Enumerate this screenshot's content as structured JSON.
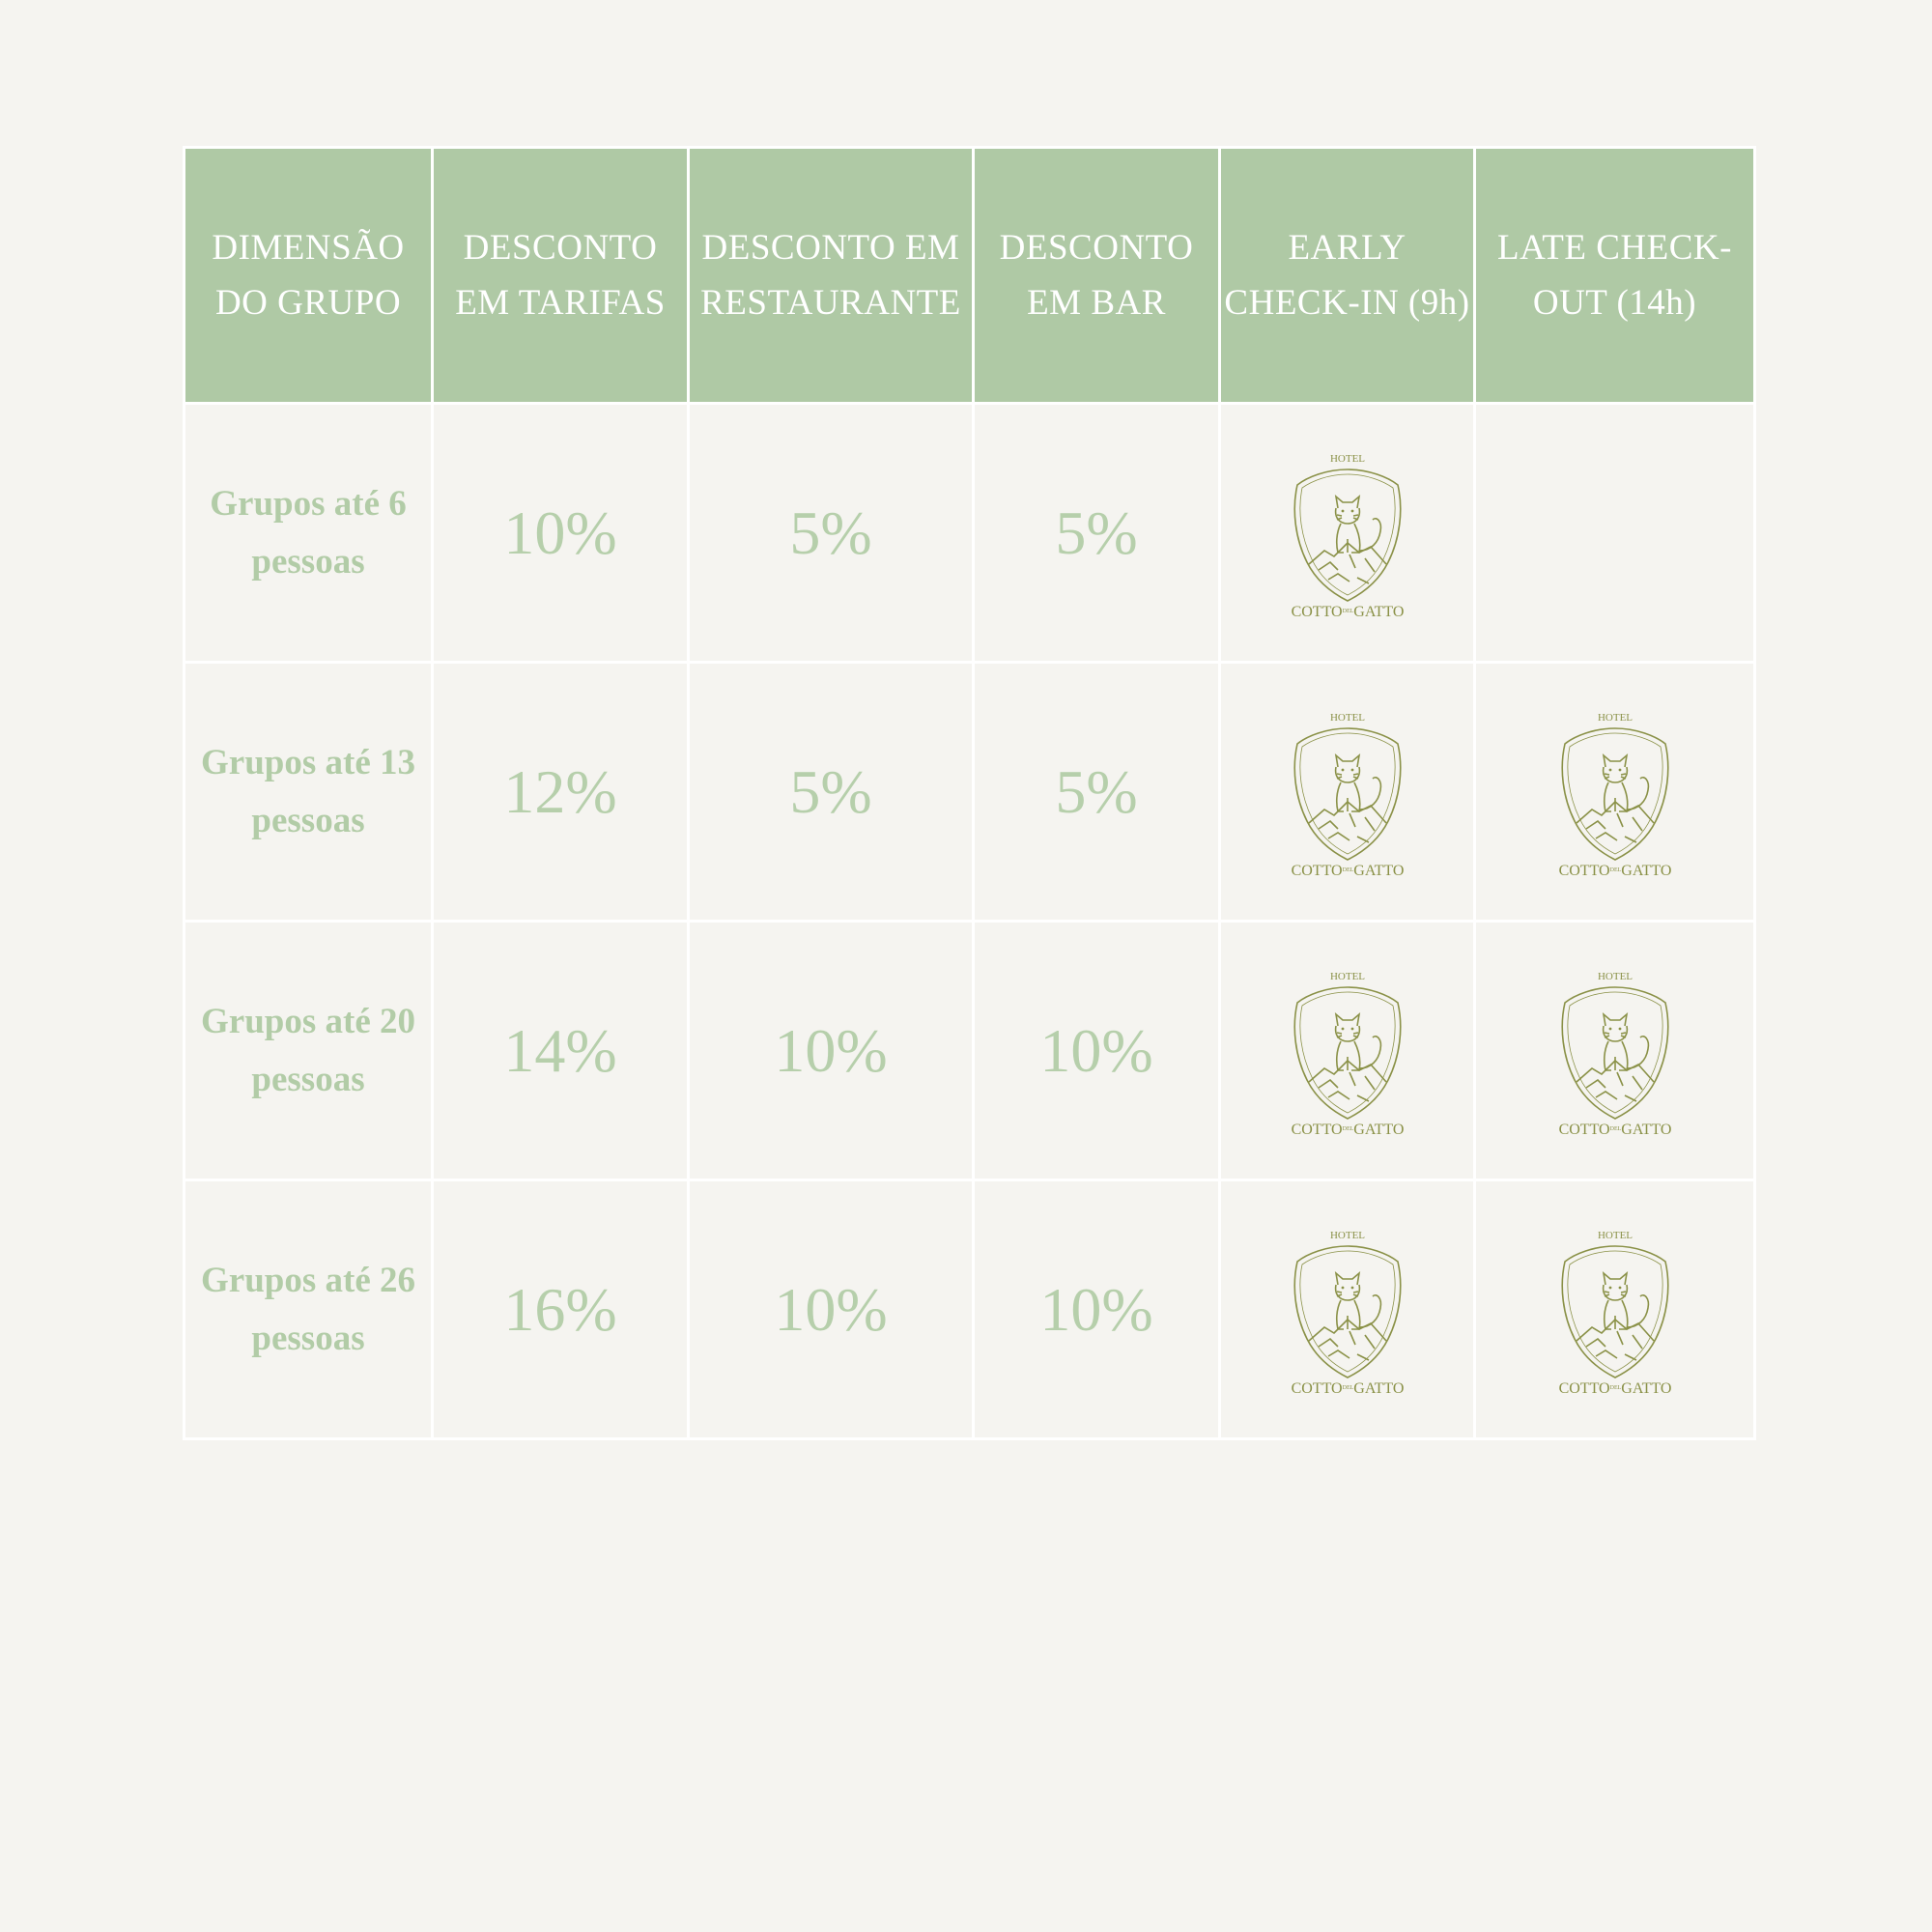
{
  "table": {
    "headers": [
      "DIMENSÃO DO GRUPO",
      "DESCONTO EM TARIFAS",
      "DESCONTO EM RESTAURANTE",
      "DESCONTO EM BAR",
      "EARLY CHECK-IN (9h)",
      "LATE CHECK-OUT (14h)"
    ],
    "rows": [
      {
        "group": "Grupos até 6 pessoas",
        "tarifas": "10%",
        "restaurante": "5%",
        "bar": "5%",
        "early_checkin": true,
        "late_checkout": false
      },
      {
        "group": "Grupos até 13 pessoas",
        "tarifas": "12%",
        "restaurante": "5%",
        "bar": "5%",
        "early_checkin": true,
        "late_checkout": true
      },
      {
        "group": "Grupos até 20 pessoas",
        "tarifas": "14%",
        "restaurante": "10%",
        "bar": "10%",
        "early_checkin": true,
        "late_checkout": true
      },
      {
        "group": "Grupos até 26 pessoas",
        "tarifas": "16%",
        "restaurante": "10%",
        "bar": "10%",
        "early_checkin": true,
        "late_checkout": true
      }
    ]
  },
  "logo": {
    "top_text": "HOTEL",
    "name_left": "COTTO",
    "name_small": "DEL",
    "name_right": "GATTO",
    "icon": "cat-on-rock-crest-icon",
    "color": "#8a9147"
  },
  "colors": {
    "background": "#f5f4f0",
    "header_bg": "#afc9a5",
    "header_text": "#ffffff",
    "body_text": "#b4cda9"
  }
}
